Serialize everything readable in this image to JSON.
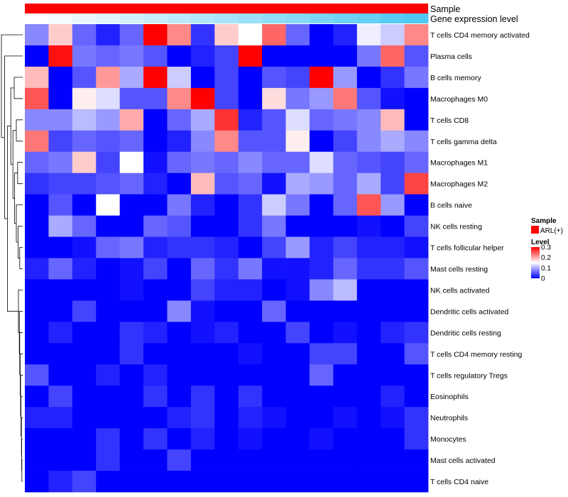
{
  "chart_data": {
    "type": "heatmap",
    "annotations": [
      {
        "name": "Sample"
      },
      {
        "name": "Gene expression level",
        "low_color": "#ffffff",
        "high_color": "#4fc8f2"
      }
    ],
    "rows": [
      "T cells CD4 memory activated",
      "Plasma cells",
      "B cells memory",
      "Macrophages M0",
      "T cells CD8",
      "T cells gamma delta",
      "Macrophages M1",
      "Macrophages M2",
      "B cells naive",
      "NK cells resting",
      "T cells follicular helper",
      "Mast cells resting",
      "NK cells activated",
      "Dendritic cells activated",
      "Dendritic cells resting",
      "T cells CD4 memory resting",
      "T cells regulatory  Tregs",
      "Eosinophils",
      "Neutrophils",
      "Monocytes",
      "Mast cells activated",
      "T cells CD4 naive"
    ],
    "values": [
      [
        0.08,
        0.18,
        0.06,
        0.02,
        0.06,
        0.3,
        0.22,
        0.03,
        0.18,
        0.15,
        0.24,
        0.06,
        0.0,
        0.02,
        0.14,
        0.12,
        0.22
      ],
      [
        0.0,
        0.29,
        0.07,
        0.06,
        0.07,
        0.05,
        0.0,
        0.02,
        0.04,
        0.3,
        0.0,
        0.0,
        0.0,
        0.0,
        0.07,
        0.24,
        0.05
      ],
      [
        0.19,
        0.0,
        0.05,
        0.21,
        0.1,
        0.3,
        0.12,
        0.0,
        0.04,
        0.0,
        0.05,
        0.04,
        0.3,
        0.09,
        0.0,
        0.03,
        0.07
      ],
      [
        0.25,
        0.0,
        0.16,
        0.13,
        0.05,
        0.05,
        0.22,
        0.3,
        0.04,
        0.0,
        0.17,
        0.07,
        0.09,
        0.23,
        0.05,
        0.01,
        0.0
      ],
      [
        0.08,
        0.08,
        0.11,
        0.09,
        0.2,
        0.0,
        0.06,
        0.1,
        0.27,
        0.02,
        0.05,
        0.13,
        0.06,
        0.07,
        0.08,
        0.19,
        0.0
      ],
      [
        0.23,
        0.04,
        0.06,
        0.05,
        0.06,
        0.0,
        0.02,
        0.08,
        0.22,
        0.05,
        0.05,
        0.16,
        0.0,
        0.04,
        0.08,
        0.1,
        0.08
      ],
      [
        0.06,
        0.07,
        0.18,
        0.04,
        0.15,
        0.01,
        0.06,
        0.07,
        0.06,
        0.08,
        0.06,
        0.06,
        0.13,
        0.06,
        0.05,
        0.04,
        0.06
      ],
      [
        0.03,
        0.04,
        0.04,
        0.05,
        0.06,
        0.02,
        0.0,
        0.19,
        0.05,
        0.06,
        0.01,
        0.1,
        0.09,
        0.06,
        0.1,
        0.04,
        0.26
      ],
      [
        0.0,
        0.05,
        0.0,
        0.15,
        0.0,
        0.0,
        0.07,
        0.02,
        0.0,
        0.03,
        0.12,
        0.07,
        0.0,
        0.06,
        0.25,
        0.09,
        0.0
      ],
      [
        0.0,
        0.1,
        0.06,
        0.0,
        0.0,
        0.06,
        0.05,
        0.0,
        0.0,
        0.03,
        0.07,
        0.0,
        0.0,
        0.0,
        0.01,
        0.0,
        0.04
      ],
      [
        0.0,
        0.0,
        0.01,
        0.06,
        0.07,
        0.02,
        0.03,
        0.03,
        0.02,
        0.0,
        0.04,
        0.09,
        0.02,
        0.04,
        0.02,
        0.02,
        0.01
      ],
      [
        0.02,
        0.06,
        0.02,
        0.0,
        0.01,
        0.04,
        0.0,
        0.06,
        0.03,
        0.07,
        0.01,
        0.01,
        0.02,
        0.06,
        0.03,
        0.03,
        0.05
      ],
      [
        0.0,
        0.0,
        0.0,
        0.0,
        0.01,
        0.0,
        0.0,
        0.04,
        0.02,
        0.02,
        0.0,
        0.01,
        0.08,
        0.11,
        0.0,
        0.0,
        0.0
      ],
      [
        0.0,
        0.0,
        0.04,
        0.0,
        0.0,
        0.0,
        0.08,
        0.01,
        0.0,
        0.0,
        0.06,
        0.0,
        0.0,
        0.0,
        0.0,
        0.0,
        0.0
      ],
      [
        0.0,
        0.02,
        0.0,
        0.0,
        0.03,
        0.02,
        0.0,
        0.01,
        0.02,
        0.0,
        0.0,
        0.04,
        0.0,
        0.01,
        0.0,
        0.02,
        0.03
      ],
      [
        0.0,
        0.0,
        0.0,
        0.0,
        0.03,
        0.0,
        0.0,
        0.0,
        0.0,
        0.01,
        0.0,
        0.0,
        0.04,
        0.04,
        0.0,
        0.0,
        0.05
      ],
      [
        0.05,
        0.0,
        0.0,
        0.02,
        0.0,
        0.02,
        0.0,
        0.0,
        0.0,
        0.0,
        0.0,
        0.0,
        0.06,
        0.0,
        0.0,
        0.0,
        0.0
      ],
      [
        0.0,
        0.04,
        0.0,
        0.0,
        0.0,
        0.03,
        0.0,
        0.03,
        0.0,
        0.03,
        0.0,
        0.0,
        0.0,
        0.0,
        0.0,
        0.02,
        0.0
      ],
      [
        0.02,
        0.02,
        0.0,
        0.0,
        0.0,
        0.0,
        0.02,
        0.03,
        0.0,
        0.02,
        0.01,
        0.0,
        0.0,
        0.01,
        0.0,
        0.01,
        0.03
      ],
      [
        0.0,
        0.0,
        0.0,
        0.03,
        0.0,
        0.03,
        0.0,
        0.02,
        0.0,
        0.01,
        0.0,
        0.0,
        0.01,
        0.0,
        0.0,
        0.0,
        0.03
      ],
      [
        0.0,
        0.0,
        0.0,
        0.03,
        0.0,
        0.0,
        0.04,
        0.0,
        0.0,
        0.0,
        0.0,
        0.0,
        0.0,
        0.0,
        0.0,
        0.0,
        0.0
      ],
      [
        0.0,
        0.02,
        0.04,
        0.0,
        0.0,
        0.0,
        0.0,
        0.0,
        0.0,
        0.0,
        0.0,
        0.0,
        0.0,
        0.0,
        0.0,
        0.0,
        0.0
      ]
    ],
    "color_scale": {
      "min": 0,
      "max": 0.3,
      "stops": [
        {
          "value": 0,
          "color": "#0000ff"
        },
        {
          "value": 0.15,
          "color": "#ffffff"
        },
        {
          "value": 0.3,
          "color": "#ff0000"
        }
      ]
    },
    "legend": {
      "sample_title": "Sample",
      "sample_item": "ARL(+)",
      "sample_color": "#ff0000",
      "level_title": "Level",
      "level_ticks": [
        "0.3",
        "0.2",
        "0.1",
        "0"
      ]
    },
    "row_dendrogram": true
  }
}
